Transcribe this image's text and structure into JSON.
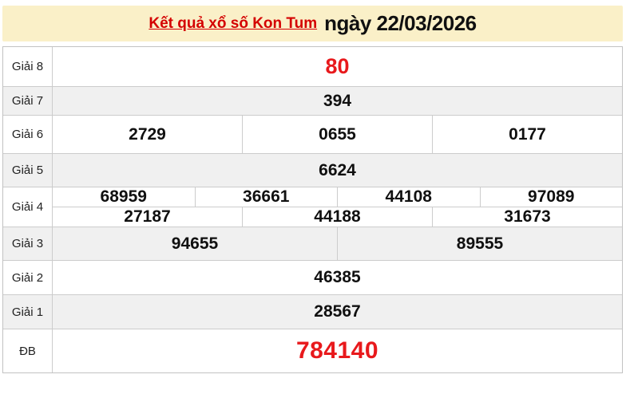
{
  "header": {
    "title_link": "Kết quả xổ số Kon Tum",
    "title_date": "ngày 22/03/2026"
  },
  "colors": {
    "header_bg": "#faf0c8",
    "row_alt_bg": "#f0f0f0",
    "border": "#cccccc",
    "red": "#e8191c",
    "link_red": "#d40000"
  },
  "results_table": {
    "rows": [
      {
        "label": "Giải 8",
        "numbers": [
          "80"
        ]
      },
      {
        "label": "Giải 7",
        "numbers": [
          "394"
        ]
      },
      {
        "label": "Giải 6",
        "numbers": [
          "2729",
          "0655",
          "0177"
        ]
      },
      {
        "label": "Giải 5",
        "numbers": [
          "6624"
        ]
      },
      {
        "label": "Giải 4",
        "lines": [
          [
            "68959",
            "36661",
            "44108",
            "97089"
          ],
          [
            "27187",
            "44188",
            "31673"
          ]
        ]
      },
      {
        "label": "Giải 3",
        "numbers": [
          "94655",
          "89555"
        ]
      },
      {
        "label": "Giải 2",
        "numbers": [
          "46385"
        ]
      },
      {
        "label": "Giải 1",
        "numbers": [
          "28567"
        ]
      },
      {
        "label": "ĐB",
        "numbers": [
          "784140"
        ]
      }
    ]
  }
}
